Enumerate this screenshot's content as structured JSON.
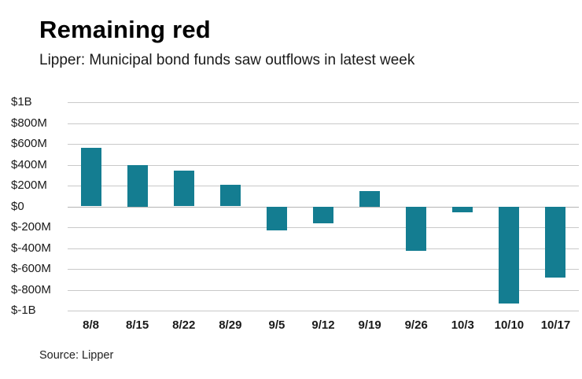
{
  "chart_data": {
    "type": "bar",
    "title": "Remaining red",
    "subtitle": "Lipper: Municipal bond funds saw outflows in latest week",
    "source": "Source: Lipper",
    "categories": [
      "8/8",
      "8/15",
      "8/22",
      "8/29",
      "9/5",
      "9/12",
      "9/19",
      "9/26",
      "10/3",
      "10/10",
      "10/17"
    ],
    "values": [
      560,
      400,
      340,
      210,
      -230,
      -160,
      150,
      -430,
      -60,
      -930,
      -680
    ],
    "unit": "USD millions",
    "ylim": [
      -1000,
      1000
    ],
    "yticks": [
      {
        "value": 1000,
        "label": "$1B"
      },
      {
        "value": 800,
        "label": "$800M"
      },
      {
        "value": 600,
        "label": "$600M"
      },
      {
        "value": 400,
        "label": "$400M"
      },
      {
        "value": 200,
        "label": "$200M"
      },
      {
        "value": 0,
        "label": "$0"
      },
      {
        "value": -200,
        "label": "$-200M"
      },
      {
        "value": -400,
        "label": "$-400M"
      },
      {
        "value": -600,
        "label": "$-600M"
      },
      {
        "value": -800,
        "label": "$-800M"
      },
      {
        "value": -1000,
        "label": "$-1B"
      }
    ],
    "legend": null,
    "grid": true,
    "bar_color": "#147d91",
    "grid_color": "#c9c9c9",
    "zero_line_color": "#b5b5b5"
  }
}
